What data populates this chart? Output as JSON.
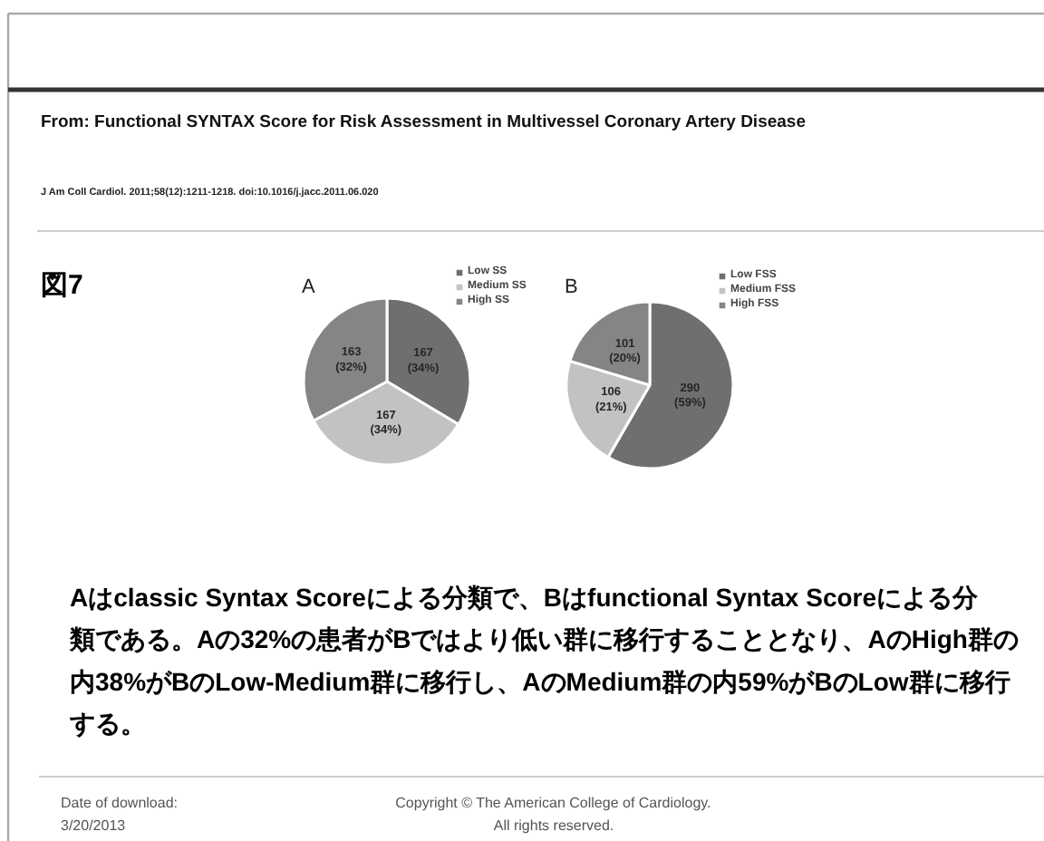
{
  "chart_data": [
    {
      "type": "pie",
      "title": "A",
      "categories": [
        "Low SS",
        "Medium SS",
        "High SS"
      ],
      "values": [
        167,
        167,
        163
      ],
      "colors": [
        "#6f6f6f",
        "#c2c2c2",
        "#858585"
      ],
      "value_labels": [
        "167\n(34%)",
        "167\n(34%)",
        "163\n(32%)"
      ],
      "legend": "top right",
      "annotations": [
        "From: Functional SYNTAX Score for Risk Assessment in Multivessel Coronary Artery Disease",
        "J Am Coll Cardiol. 2011;58(12):1211-1218. doi:10.1016/j.jacc.2011.06.020",
        "図7"
      ]
    },
    {
      "type": "pie",
      "title": "B",
      "categories": [
        "Low FSS",
        "Medium FSS",
        "High FSS"
      ],
      "values": [
        290,
        106,
        101
      ],
      "colors": [
        "#6f6f6f",
        "#c2c2c2",
        "#858585"
      ],
      "value_labels": [
        "290\n(59%)",
        "106\n(21%)",
        "101\n(20%)"
      ],
      "legend": "top right",
      "annotations": [
        "Aはclassic Syntax Scoreによる分類で、Bはfunctional Syntax Scoreによる分類である。Aの32%の患者がBではより低い群に移行することとなり、AのHigh群の内38%がBのLow-Medium群に移行し、AのMedium群の内59%がBのLow群に移行する。",
        "Date of download:\n3/20/2013",
        "Copyright © The American College of Cardiology.\nAll rights reserved."
      ]
    }
  ]
}
